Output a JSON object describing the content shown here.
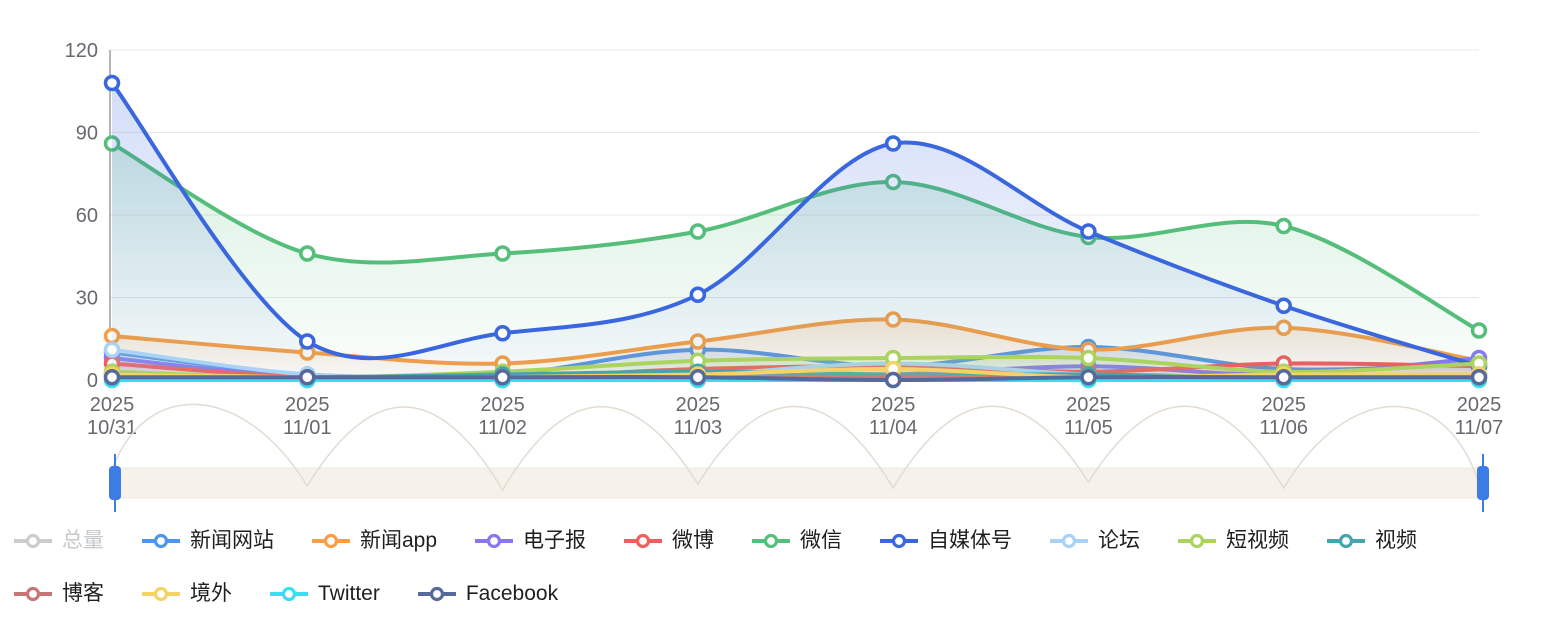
{
  "chart_data": {
    "type": "line",
    "smooth": true,
    "title": "",
    "xlabel": "",
    "ylabel": "",
    "ylim": [
      0,
      120
    ],
    "yticks": [
      0,
      30,
      60,
      90,
      120
    ],
    "grid": true,
    "legend_position": "bottom",
    "categories": [
      "2025 10/31",
      "2025 11/01",
      "2025 11/02",
      "2025 11/03",
      "2025 11/04",
      "2025 11/05",
      "2025 11/06",
      "2025 11/07"
    ],
    "x_labels": [
      {
        "year": "2025",
        "day": "10/31"
      },
      {
        "year": "2025",
        "day": "11/01"
      },
      {
        "year": "2025",
        "day": "11/02"
      },
      {
        "year": "2025",
        "day": "11/03"
      },
      {
        "year": "2025",
        "day": "11/04"
      },
      {
        "year": "2025",
        "day": "11/05"
      },
      {
        "year": "2025",
        "day": "11/06"
      },
      {
        "year": "2025",
        "day": "11/07"
      }
    ],
    "series": [
      {
        "name": "总量",
        "key": "zongliang",
        "color": "#cccccc",
        "selected": false,
        "values": null
      },
      {
        "name": "新闻网站",
        "key": "xinwen-wangzhan",
        "color": "#4e96ed",
        "selected": true,
        "values": [
          10,
          2,
          2,
          11,
          5,
          12,
          4,
          6
        ]
      },
      {
        "name": "新闻app",
        "key": "xinwen-app",
        "color": "#f99e45",
        "selected": true,
        "values": [
          16,
          10,
          6,
          14,
          22,
          11,
          19,
          7
        ]
      },
      {
        "name": "电子报",
        "key": "dianzibao",
        "color": "#8678f0",
        "selected": true,
        "values": [
          8,
          1,
          1,
          2,
          2,
          5,
          2,
          8
        ]
      },
      {
        "name": "微博",
        "key": "weibo",
        "color": "#f25e5e",
        "selected": true,
        "values": [
          6,
          1,
          1,
          4,
          5,
          3,
          6,
          5
        ]
      },
      {
        "name": "微信",
        "key": "weixin",
        "color": "#55be7b",
        "selected": true,
        "values": [
          86,
          46,
          46,
          54,
          72,
          52,
          56,
          18
        ]
      },
      {
        "name": "自媒体号",
        "key": "zimeitihao",
        "color": "#3a66de",
        "selected": true,
        "values": [
          108,
          14,
          17,
          31,
          86,
          54,
          27,
          5
        ]
      },
      {
        "name": "论坛",
        "key": "luntan",
        "color": "#a8d2f6",
        "selected": true,
        "values": [
          11,
          2,
          1,
          2,
          6,
          2,
          1,
          2
        ]
      },
      {
        "name": "短视频",
        "key": "duanshipin",
        "color": "#aad35f",
        "selected": true,
        "values": [
          3,
          1,
          3,
          7,
          8,
          8,
          3,
          6
        ]
      },
      {
        "name": "视频",
        "key": "shipin",
        "color": "#45a5ac",
        "selected": true,
        "values": [
          2,
          1,
          2,
          3,
          2,
          2,
          1,
          2
        ]
      },
      {
        "name": "博客",
        "key": "boke",
        "color": "#c87575",
        "selected": true,
        "values": [
          1,
          0,
          0,
          1,
          1,
          1,
          1,
          1
        ]
      },
      {
        "name": "境外",
        "key": "jingwai",
        "color": "#f6d266",
        "selected": true,
        "values": [
          2,
          1,
          1,
          2,
          4,
          1,
          2,
          2
        ]
      },
      {
        "name": "Twitter",
        "key": "twitter",
        "color": "#3bddf2",
        "selected": true,
        "values": [
          0,
          0,
          0,
          0,
          0,
          0,
          0,
          0
        ]
      },
      {
        "name": "Facebook",
        "key": "facebook",
        "color": "#56699b",
        "selected": true,
        "values": [
          1,
          1,
          1,
          1,
          0,
          1,
          1,
          1
        ]
      }
    ]
  },
  "axis_colors": {
    "label": "#67696f",
    "grid": "#e8e8e8",
    "axis_line": "#94969c"
  },
  "slider": {
    "track_color": "#f6f1e9",
    "track_border": "#efe8dc",
    "shadow_color": "#e2dcd2",
    "handle_color": "#3d7be5",
    "shadow_values": [
      14,
      6,
      4,
      7,
      5,
      8,
      5,
      7
    ]
  },
  "legend": {
    "row_break_index": 10
  }
}
